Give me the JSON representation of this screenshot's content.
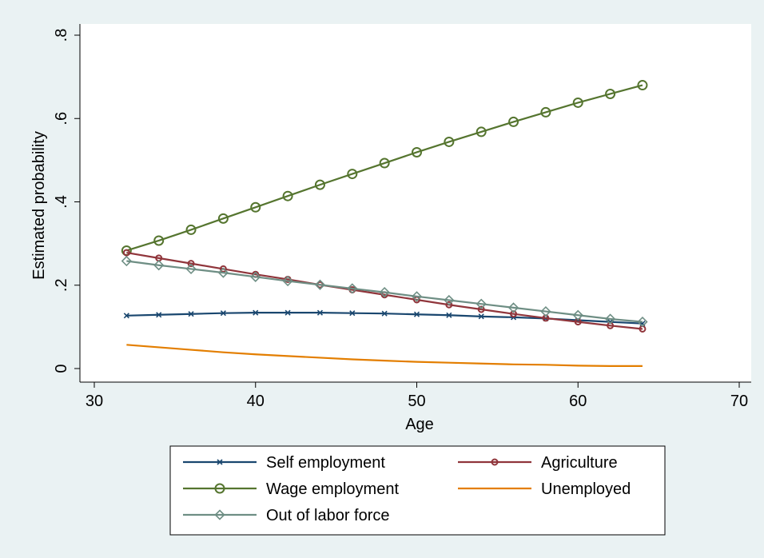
{
  "chart_data": {
    "type": "line",
    "xlabel": "Age",
    "ylabel": "Estimated probability",
    "xlim": [
      30,
      70
    ],
    "ylim": [
      0,
      0.8
    ],
    "xticks": [
      30,
      40,
      50,
      60,
      70
    ],
    "yticks": [
      0,
      0.2,
      0.4,
      0.6,
      0.8
    ],
    "xtick_labels": [
      "30",
      "40",
      "50",
      "60",
      "70"
    ],
    "ytick_labels": [
      "0",
      ".2",
      ".4",
      ".6",
      ".8"
    ],
    "grid": false,
    "legend_position": "bottom",
    "x": [
      32,
      34,
      36,
      38,
      40,
      42,
      44,
      46,
      48,
      50,
      52,
      54,
      56,
      58,
      60,
      62,
      64
    ],
    "series": [
      {
        "name": "Self employment",
        "color": "#1a476f",
        "marker": "x",
        "values": [
          0.127,
          0.129,
          0.131,
          0.133,
          0.134,
          0.134,
          0.134,
          0.133,
          0.132,
          0.13,
          0.128,
          0.125,
          0.123,
          0.12,
          0.116,
          0.112,
          0.108
        ]
      },
      {
        "name": "Agriculture",
        "color": "#90353b",
        "marker": "circle-small",
        "values": [
          0.278,
          0.265,
          0.252,
          0.239,
          0.226,
          0.214,
          0.201,
          0.189,
          0.177,
          0.165,
          0.153,
          0.142,
          0.131,
          0.121,
          0.112,
          0.103,
          0.095
        ]
      },
      {
        "name": "Wage employment",
        "color": "#55752f",
        "marker": "circle",
        "values": [
          0.283,
          0.307,
          0.333,
          0.36,
          0.387,
          0.414,
          0.441,
          0.467,
          0.493,
          0.519,
          0.544,
          0.568,
          0.592,
          0.615,
          0.638,
          0.659,
          0.68
        ]
      },
      {
        "name": "Unemployed",
        "color": "#e37e00",
        "marker": "none",
        "values": [
          0.057,
          0.051,
          0.045,
          0.039,
          0.034,
          0.03,
          0.026,
          0.022,
          0.019,
          0.016,
          0.014,
          0.012,
          0.01,
          0.009,
          0.007,
          0.006,
          0.006
        ]
      },
      {
        "name": "Out of labor force",
        "color": "#6e8e84",
        "marker": "diamond",
        "values": [
          0.258,
          0.248,
          0.239,
          0.23,
          0.22,
          0.21,
          0.201,
          0.192,
          0.183,
          0.173,
          0.164,
          0.155,
          0.146,
          0.137,
          0.128,
          0.119,
          0.112
        ]
      }
    ]
  }
}
